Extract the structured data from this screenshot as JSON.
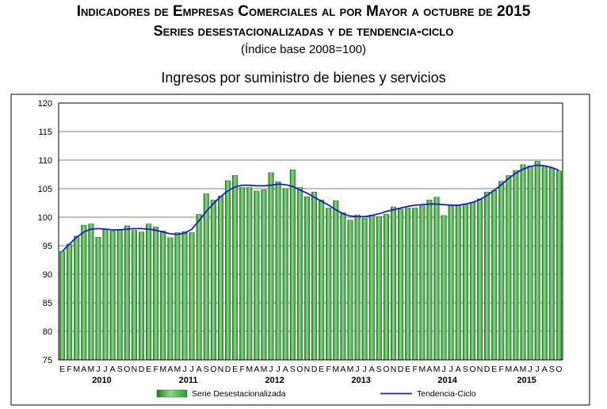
{
  "header": {
    "title_line1": "Indicadores de Empresas Comerciales al por Mayor a octubre de 2015",
    "title_line2": "Series desestacionalizadas y de tendencia-ciclo",
    "subtitle": "(Índice base 2008=100)"
  },
  "chart_data": {
    "type": "bar",
    "title": "Ingresos por suministro de bienes y servicios",
    "xlabel": "",
    "ylabel": "",
    "ylim": [
      75,
      120
    ],
    "yticks": [
      "75",
      "80",
      "85",
      "90",
      "95",
      "100",
      "105",
      "110",
      "115",
      "120"
    ],
    "grid": true,
    "legend_position": "bottom",
    "month_labels": [
      "E",
      "F",
      "M",
      "A",
      "M",
      "J",
      "J",
      "A",
      "S",
      "O",
      "N",
      "D"
    ],
    "year_labels": [
      {
        "label": "2010",
        "start_index": 0
      },
      {
        "label": "2011",
        "start_index": 12
      },
      {
        "label": "2012",
        "start_index": 24
      },
      {
        "label": "2013",
        "start_index": 36
      },
      {
        "label": "2014",
        "start_index": 48
      },
      {
        "label": "2015",
        "start_index": 60
      }
    ],
    "x": [
      "2010-01",
      "2010-02",
      "2010-03",
      "2010-04",
      "2010-05",
      "2010-06",
      "2010-07",
      "2010-08",
      "2010-09",
      "2010-10",
      "2010-11",
      "2010-12",
      "2011-01",
      "2011-02",
      "2011-03",
      "2011-04",
      "2011-05",
      "2011-06",
      "2011-07",
      "2011-08",
      "2011-09",
      "2011-10",
      "2011-11",
      "2011-12",
      "2012-01",
      "2012-02",
      "2012-03",
      "2012-04",
      "2012-05",
      "2012-06",
      "2012-07",
      "2012-08",
      "2012-09",
      "2012-10",
      "2012-11",
      "2012-12",
      "2013-01",
      "2013-02",
      "2013-03",
      "2013-04",
      "2013-05",
      "2013-06",
      "2013-07",
      "2013-08",
      "2013-09",
      "2013-10",
      "2013-11",
      "2013-12",
      "2014-01",
      "2014-02",
      "2014-03",
      "2014-04",
      "2014-05",
      "2014-06",
      "2014-07",
      "2014-08",
      "2014-09",
      "2014-10",
      "2014-11",
      "2014-12",
      "2015-01",
      "2015-02",
      "2015-03",
      "2015-04",
      "2015-05",
      "2015-06",
      "2015-07",
      "2015-08",
      "2015-09",
      "2015-10"
    ],
    "series": [
      {
        "name": "Serie Desestacionalizada",
        "kind": "bar",
        "color": "#2e9a2e",
        "values": [
          94.0,
          95.3,
          96.7,
          98.6,
          98.8,
          96.5,
          97.8,
          97.6,
          97.7,
          98.5,
          97.7,
          97.4,
          98.8,
          98.3,
          97.6,
          96.4,
          97.3,
          97.5,
          97.3,
          100.5,
          104.1,
          103.0,
          103.7,
          106.4,
          107.3,
          105.2,
          105.2,
          104.6,
          104.8,
          107.8,
          106.2,
          105.0,
          108.3,
          105.2,
          103.6,
          104.4,
          103.0,
          101.6,
          102.9,
          100.8,
          99.5,
          100.4,
          99.8,
          100.4,
          100.1,
          100.5,
          101.8,
          101.4,
          101.6,
          101.6,
          102.0,
          103.0,
          103.5,
          100.3,
          102.0,
          102.0,
          102.2,
          102.6,
          103.2,
          104.4,
          104.7,
          106.3,
          107.3,
          108.2,
          109.2,
          109.0,
          109.8,
          109.0,
          108.6,
          108.1
        ]
      },
      {
        "name": "Tendencia-Ciclo",
        "kind": "line",
        "color": "#1c1ccc",
        "values": [
          94.0,
          95.3,
          96.5,
          97.4,
          97.9,
          98.0,
          97.9,
          97.8,
          97.8,
          97.9,
          98.0,
          98.0,
          97.9,
          97.7,
          97.4,
          97.1,
          97.0,
          97.2,
          97.9,
          99.4,
          101.0,
          102.4,
          103.6,
          104.6,
          105.3,
          105.6,
          105.6,
          105.5,
          105.5,
          105.6,
          105.8,
          105.7,
          105.4,
          104.8,
          104.2,
          103.5,
          102.8,
          102.1,
          101.3,
          100.6,
          100.2,
          100.1,
          100.1,
          100.3,
          100.6,
          101.0,
          101.3,
          101.6,
          101.9,
          102.1,
          102.2,
          102.3,
          102.3,
          102.2,
          102.1,
          102.1,
          102.3,
          102.6,
          103.1,
          103.8,
          104.7,
          105.7,
          106.8,
          107.7,
          108.4,
          108.9,
          109.1,
          109.0,
          108.7,
          108.2
        ]
      }
    ]
  }
}
